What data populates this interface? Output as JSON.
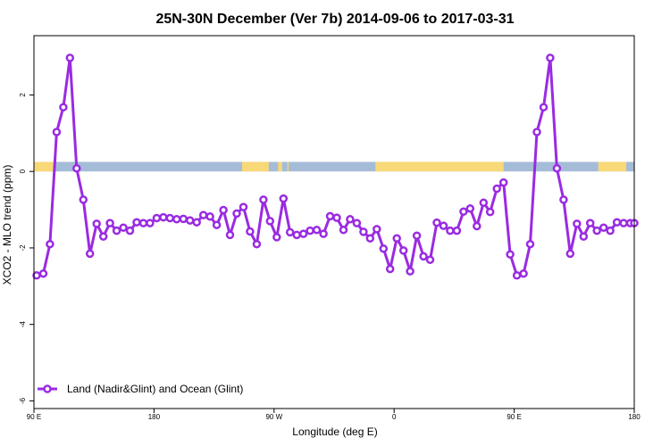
{
  "chart_data": {
    "type": "line",
    "title": "25N-30N December (Ver 7b)   2014-09-06 to 2017-03-31",
    "xlabel": "Longitude (deg E)",
    "ylabel": "XCO2 - MLO trend (ppm)",
    "xlim": [
      90,
      540
    ],
    "ylim": [
      -6.2,
      3.55
    ],
    "x_ticks": [
      90,
      180,
      270,
      360,
      450,
      540
    ],
    "x_tick_labels": [
      "90 E",
      "180",
      "90 W",
      "0",
      "90 E",
      "180"
    ],
    "y_ticks": [
      -6,
      -4,
      -2,
      0,
      2
    ],
    "y_tick_labels": [
      "-6",
      "-4",
      "-2",
      "0",
      "2"
    ],
    "series_color": "#9a2be2",
    "ocean_color": "#a5bcd8",
    "land_color": "#f9d878",
    "land_segments": [
      [
        90,
        106
      ],
      [
        246,
        266
      ],
      [
        273,
        276
      ],
      [
        280,
        280.8
      ],
      [
        346,
        442
      ],
      [
        513,
        534
      ]
    ],
    "series": [
      {
        "name": "Land (Nadir&Glint) and Ocean (Glint)",
        "x": [
          92,
          97,
          102,
          107,
          112,
          117,
          122,
          127,
          132,
          137,
          142,
          147,
          152,
          157,
          162,
          167,
          172,
          177,
          182,
          187,
          192,
          197,
          202,
          207,
          212,
          217,
          222,
          227,
          232,
          237,
          242,
          247,
          252,
          257,
          262,
          267,
          272,
          277,
          282,
          287,
          292,
          297,
          302,
          307,
          312,
          317,
          322,
          327,
          332,
          337,
          342,
          347,
          352,
          357,
          362,
          367,
          372,
          377,
          382,
          387,
          392,
          397,
          402,
          407,
          412,
          417,
          422,
          427,
          432,
          437,
          442,
          447,
          452,
          457,
          462,
          467,
          472,
          477,
          482,
          487,
          492,
          497,
          502,
          507,
          512,
          517,
          522,
          527,
          532,
          537,
          540
        ],
        "values": [
          -2.72,
          -2.67,
          -1.9,
          1.03,
          1.68,
          2.97,
          0.08,
          -0.74,
          -2.15,
          -1.37,
          -1.7,
          -1.35,
          -1.55,
          -1.47,
          -1.55,
          -1.33,
          -1.35,
          -1.35,
          -1.22,
          -1.2,
          -1.22,
          -1.25,
          -1.24,
          -1.28,
          -1.33,
          -1.14,
          -1.18,
          -1.4,
          -1.01,
          -1.66,
          -1.1,
          -0.93,
          -1.57,
          -1.9,
          -0.74,
          -1.3,
          -1.72,
          -0.71,
          -1.59,
          -1.66,
          -1.63,
          -1.55,
          -1.53,
          -1.63,
          -1.17,
          -1.21,
          -1.53,
          -1.25,
          -1.35,
          -1.58,
          -1.75,
          -1.51,
          -2.02,
          -2.55,
          -1.75,
          -2.07,
          -2.61,
          -1.68,
          -2.22,
          -2.31,
          -1.34,
          -1.42,
          -1.55,
          -1.55,
          -1.05,
          -0.97,
          -1.43,
          -0.82,
          -1.06,
          -0.45,
          -0.29,
          -2.17,
          -2.72,
          -2.67,
          -1.9,
          1.03,
          1.68,
          2.97,
          0.08,
          -0.74,
          -2.15,
          -1.37,
          -1.7,
          -1.35,
          -1.55,
          -1.47,
          -1.55,
          -1.33,
          -1.35,
          -1.35,
          -1.35
        ]
      }
    ],
    "legend": {
      "position": "bottom-left",
      "entries": [
        "Land (Nadir&Glint) and Ocean (Glint)"
      ]
    }
  }
}
